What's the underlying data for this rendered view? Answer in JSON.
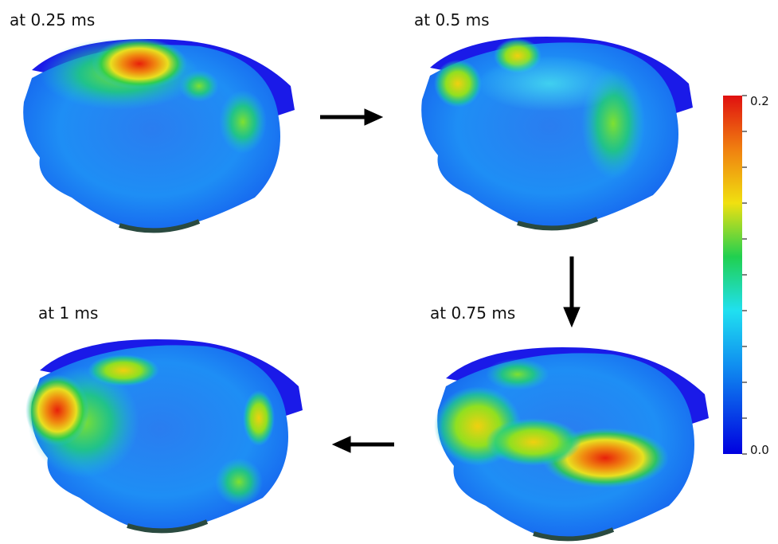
{
  "panels": [
    {
      "label": "at 0.25 ms"
    },
    {
      "label": "at 0.5 ms"
    },
    {
      "label": "at 0.75 ms"
    },
    {
      "label": "at 1 ms"
    }
  ],
  "colorbar": {
    "max_label": "0.2",
    "min_label": "0.0"
  }
}
